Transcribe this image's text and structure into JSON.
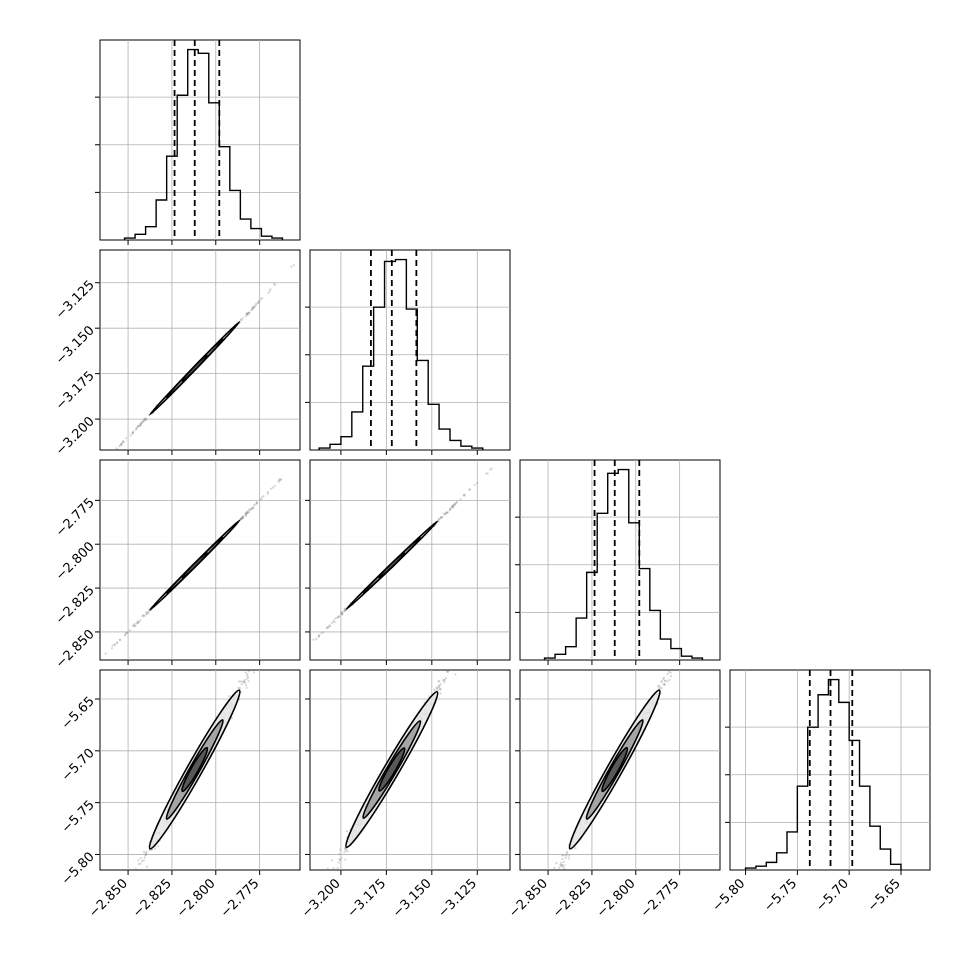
{
  "chart_data": {
    "type": "corner",
    "grid": true,
    "params": [
      {
        "range": [
          -2.866,
          -2.752
        ],
        "ticks": [
          -2.85,
          -2.825,
          -2.8,
          -2.775
        ],
        "tick_labels": [
          "−2.850",
          "−2.825",
          "−2.800",
          "−2.775"
        ],
        "quantiles": [
          -2.8235,
          -2.812,
          -2.798
        ],
        "hist": {
          "edges": [
            -2.852,
            -2.846,
            -2.84,
            -2.834,
            -2.828,
            -2.822,
            -2.816,
            -2.81,
            -2.804,
            -2.798,
            -2.792,
            -2.786,
            -2.78,
            -2.774,
            -2.768,
            -2.762
          ],
          "counts": [
            0.01,
            0.03,
            0.07,
            0.21,
            0.44,
            0.76,
            1.0,
            0.98,
            0.72,
            0.49,
            0.26,
            0.11,
            0.06,
            0.02,
            0.01
          ]
        }
      },
      {
        "range": [
          -3.217,
          -3.107
        ],
        "ticks": [
          -3.2,
          -3.175,
          -3.15,
          -3.125
        ],
        "tick_labels": [
          "−3.200",
          "−3.175",
          "−3.150",
          "−3.125"
        ],
        "quantiles": [
          -3.1835,
          -3.172,
          -3.1585
        ],
        "hist": {
          "edges": [
            -3.212,
            -3.206,
            -3.2,
            -3.194,
            -3.188,
            -3.182,
            -3.176,
            -3.17,
            -3.164,
            -3.158,
            -3.152,
            -3.146,
            -3.14,
            -3.134,
            -3.128,
            -3.122
          ],
          "counts": [
            0.01,
            0.03,
            0.07,
            0.2,
            0.44,
            0.75,
            0.99,
            1.0,
            0.74,
            0.47,
            0.24,
            0.11,
            0.05,
            0.02,
            0.01
          ]
        }
      },
      {
        "range": [
          -2.866,
          -2.752
        ],
        "ticks": [
          -2.85,
          -2.825,
          -2.8,
          -2.775
        ],
        "tick_labels": [
          "−2.850",
          "−2.825",
          "−2.800",
          "−2.775"
        ],
        "quantiles": [
          -2.8235,
          -2.812,
          -2.798
        ],
        "hist": {
          "edges": [
            -2.852,
            -2.846,
            -2.84,
            -2.834,
            -2.828,
            -2.822,
            -2.816,
            -2.81,
            -2.804,
            -2.798,
            -2.792,
            -2.786,
            -2.78,
            -2.774,
            -2.768,
            -2.762
          ],
          "counts": [
            0.01,
            0.03,
            0.07,
            0.22,
            0.46,
            0.77,
            0.98,
            1.0,
            0.72,
            0.48,
            0.26,
            0.11,
            0.06,
            0.02,
            0.01
          ]
        }
      },
      {
        "range": [
          -5.815,
          -5.622
        ],
        "ticks": [
          -5.8,
          -5.75,
          -5.7,
          -5.65
        ],
        "tick_labels": [
          "−5.80",
          "−5.75",
          "−5.70",
          "−5.65"
        ],
        "quantiles": [
          -5.738,
          -5.718,
          -5.697
        ],
        "hist": {
          "edges": [
            -5.8,
            -5.79,
            -5.78,
            -5.77,
            -5.76,
            -5.75,
            -5.74,
            -5.73,
            -5.72,
            -5.71,
            -5.7,
            -5.69,
            -5.68,
            -5.67,
            -5.66,
            -5.65
          ],
          "counts": [
            0.01,
            0.02,
            0.04,
            0.09,
            0.2,
            0.44,
            0.75,
            0.92,
            1.0,
            0.88,
            0.68,
            0.44,
            0.23,
            0.11,
            0.03
          ]
        }
      }
    ],
    "pairs": [
      {
        "x": 0,
        "y": 1,
        "slope": 1.0,
        "intercept": -0.36,
        "width": 0.9,
        "scatter_sd": 0.006
      },
      {
        "x": 0,
        "y": 2,
        "slope": 1.0,
        "intercept": 0.0,
        "width": 0.9,
        "scatter_sd": 0.006
      },
      {
        "x": 1,
        "y": 2,
        "slope": 1.0,
        "intercept": 0.36,
        "width": 0.9,
        "scatter_sd": 0.006
      },
      {
        "x": 0,
        "y": 3,
        "slope": 3.0,
        "intercept": 2.718,
        "width": 4.5,
        "scatter_sd": 0.012
      },
      {
        "x": 1,
        "y": 3,
        "slope": 3.0,
        "intercept": 3.798,
        "width": 4.5,
        "scatter_sd": 0.012
      },
      {
        "x": 2,
        "y": 3,
        "slope": 3.0,
        "intercept": 2.718,
        "width": 4.5,
        "scatter_sd": 0.012
      }
    ]
  },
  "colors": {
    "line": "#000000",
    "grid": "#b0b0b0",
    "scatter": "#8c8c8c",
    "fill_outer": "#e6e6e6",
    "fill_mid": "#9a9a9a",
    "fill_inner": "#4a4a4a"
  }
}
